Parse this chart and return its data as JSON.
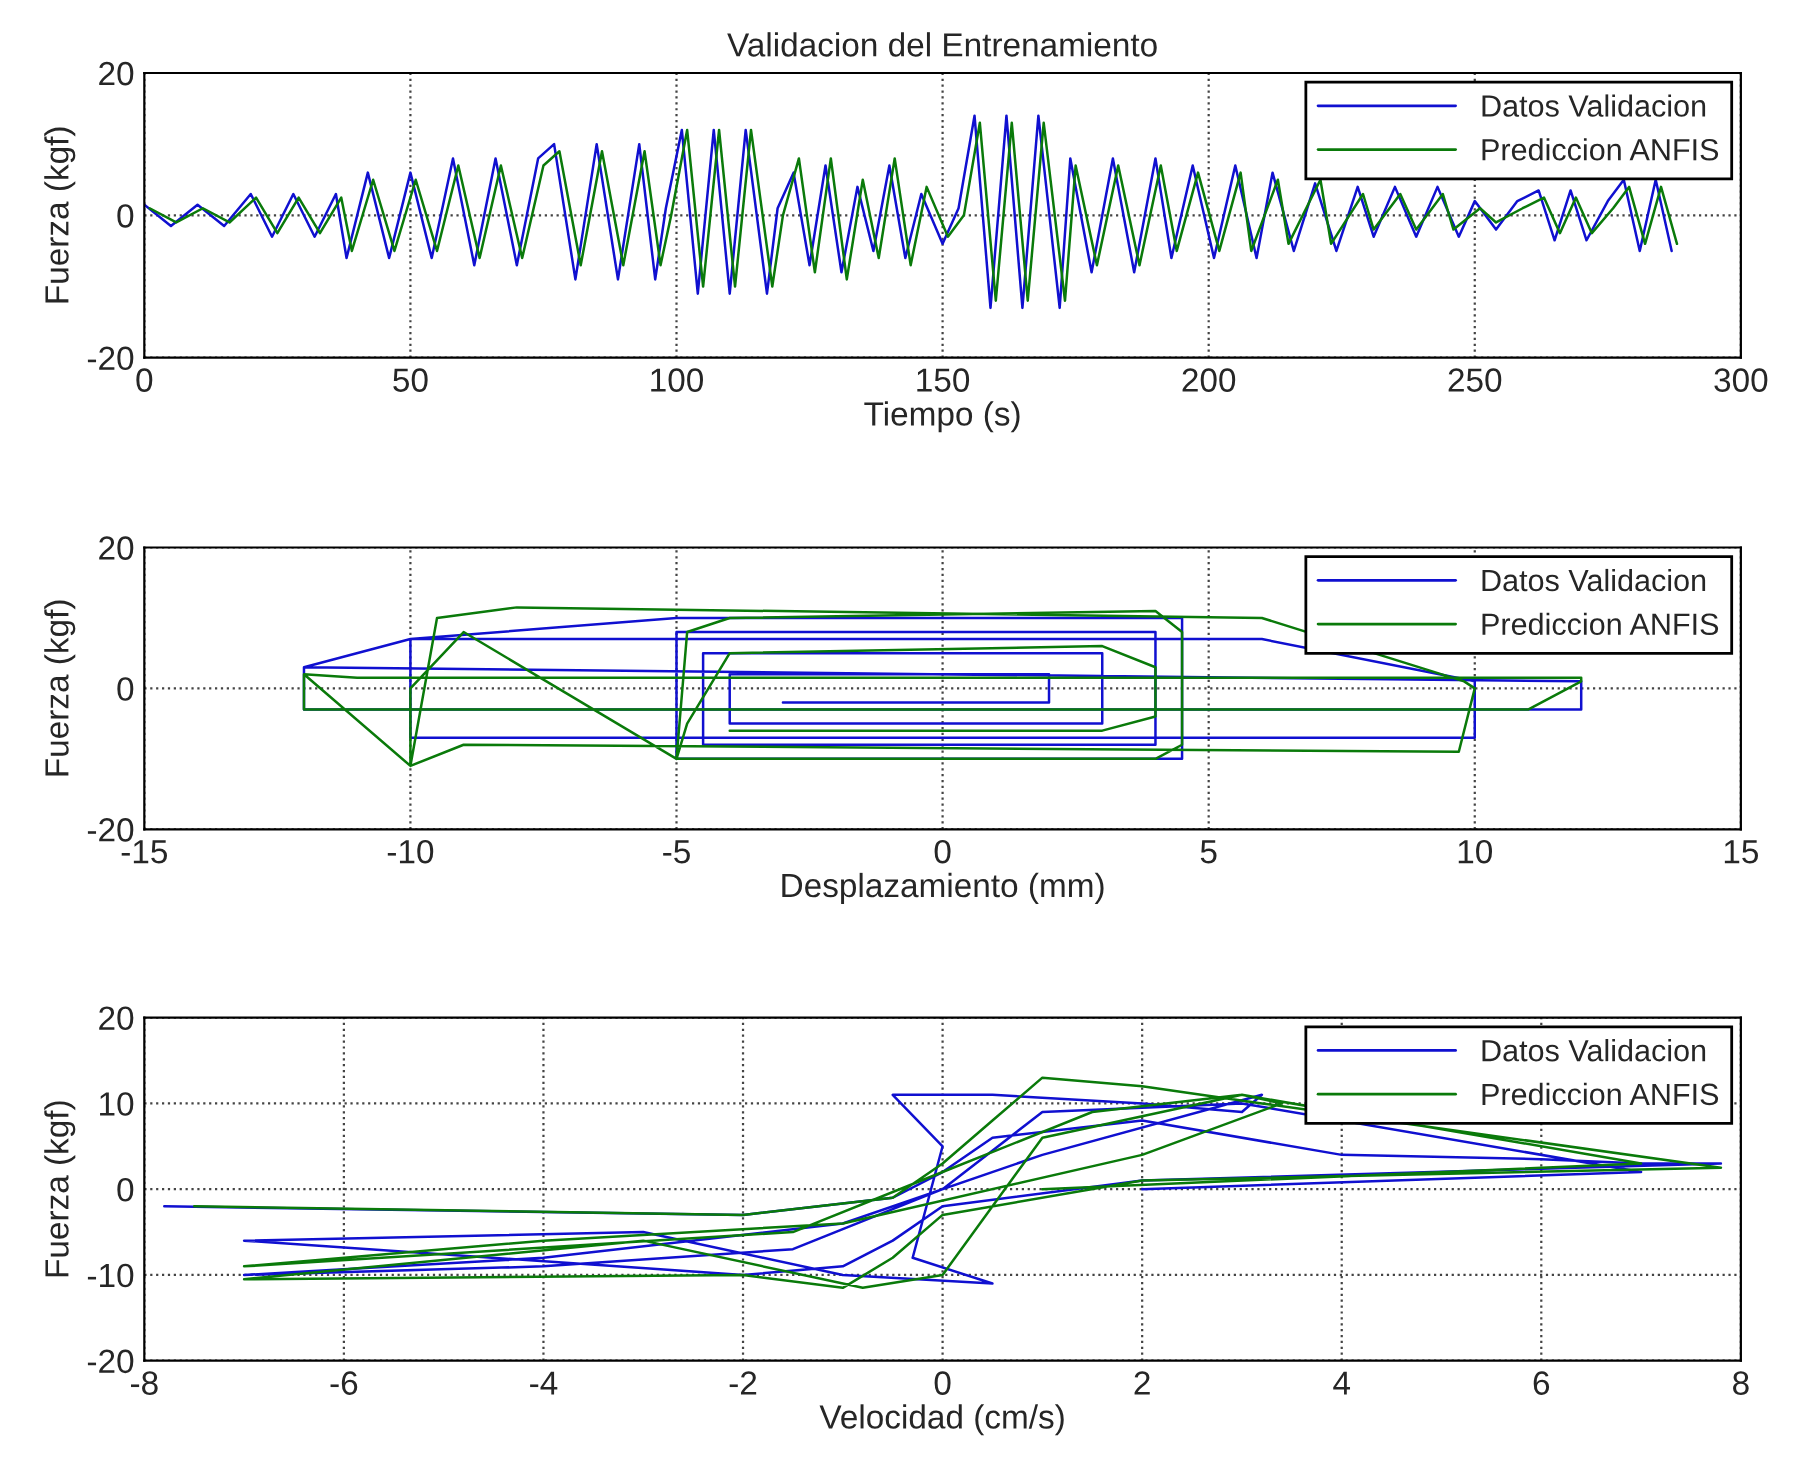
{
  "chart_data": [
    {
      "type": "line",
      "title": "Validacion del Entrenamiento",
      "xlabel": "Tiempo (s)",
      "ylabel": "Fuerza (kgf)",
      "xlim": [
        0,
        300
      ],
      "xticks": [
        0,
        50,
        100,
        150,
        200,
        250,
        300
      ],
      "ylim": [
        -20,
        20
      ],
      "yticks": [
        -20,
        0,
        20
      ],
      "grid": true,
      "legend": "top right",
      "series": [
        {
          "name": "Datos Validacion",
          "color": "#1010d0",
          "x": [
            0,
            5,
            10,
            15,
            20,
            24,
            28,
            32,
            36,
            38,
            42,
            46,
            50,
            54,
            58,
            62,
            66,
            70,
            74,
            77,
            81,
            85,
            89,
            93,
            96,
            98,
            101,
            104,
            107,
            110,
            113,
            117,
            119,
            122,
            125,
            128,
            131,
            134,
            137,
            140,
            143,
            146,
            150,
            153,
            156,
            159,
            162,
            165,
            168,
            172,
            174,
            178,
            182,
            186,
            190,
            193,
            197,
            201,
            205,
            209,
            212,
            216,
            220,
            224,
            228,
            231,
            235,
            239,
            243,
            247,
            250,
            254,
            258,
            262,
            265,
            268,
            271,
            275,
            278,
            281,
            284,
            287
          ],
          "values": [
            1.5,
            -1.5,
            1.5,
            -1.5,
            3,
            -3,
            3,
            -3,
            3,
            -6,
            6,
            -6,
            6,
            -6,
            8,
            -7,
            8,
            -7,
            8,
            10,
            -9,
            10,
            -9,
            10,
            -9,
            1,
            12,
            -11,
            12,
            -11,
            12,
            -11,
            1,
            6,
            -7,
            7,
            -8,
            4,
            -5,
            7,
            -6,
            3,
            -4,
            1,
            14,
            -13,
            14,
            -13,
            14,
            -13,
            8,
            -8,
            8,
            -8,
            8,
            -6,
            7,
            -6,
            7,
            -6,
            6,
            -5,
            4.5,
            -5,
            4,
            -3,
            4,
            -3,
            4,
            -3,
            2,
            -2,
            2,
            3.5,
            -3.5,
            3.5,
            -3.5,
            2,
            5,
            -5,
            5,
            -5
          ]
        },
        {
          "name": "Prediccion ANFIS",
          "color": "#0a7a0a",
          "x": [
            1,
            6,
            11,
            16,
            21,
            25,
            29,
            33,
            37,
            39,
            43,
            47,
            51,
            55,
            59,
            63,
            67,
            71,
            75,
            78,
            82,
            86,
            90,
            94,
            97,
            99,
            102,
            105,
            108,
            111,
            114,
            118,
            120,
            123,
            126,
            129,
            132,
            135,
            138,
            141,
            144,
            147,
            151,
            154,
            157,
            160,
            163,
            166,
            169,
            173,
            175,
            179,
            183,
            187,
            191,
            194,
            198,
            202,
            206,
            208,
            213,
            215,
            221,
            223,
            229,
            231,
            236,
            239,
            244,
            246,
            251,
            254,
            259,
            263,
            266,
            269,
            272,
            276,
            279,
            282,
            285,
            288
          ],
          "values": [
            1,
            -1,
            1,
            -1,
            2.5,
            -2.5,
            2.5,
            -2.5,
            2.5,
            -5,
            5,
            -5,
            5,
            -5,
            7,
            -6,
            7,
            -6,
            7,
            9,
            -7,
            9,
            -7,
            9,
            -7,
            0,
            12,
            -10,
            12,
            -10,
            12,
            -10,
            0,
            8,
            -8,
            8,
            -9,
            5,
            -6,
            8,
            -7,
            4,
            -3,
            0,
            13,
            -12,
            13,
            -12,
            13,
            -12,
            7,
            -7,
            7,
            -7,
            7,
            -5,
            6,
            -5,
            6,
            -5,
            5,
            -4,
            5,
            -4,
            3,
            -2,
            3,
            -2,
            3,
            -2,
            1,
            -1,
            1,
            2.5,
            -2.5,
            2.5,
            -2.5,
            1,
            4,
            -4,
            4,
            -4
          ]
        }
      ]
    },
    {
      "type": "line",
      "xlabel": "Desplazamiento (mm)",
      "ylabel": "Fuerza (kgf)",
      "xlim": [
        -15,
        15
      ],
      "xticks": [
        -15,
        -10,
        -5,
        0,
        5,
        10,
        15
      ],
      "ylim": [
        -20,
        20
      ],
      "yticks": [
        -20,
        0,
        20
      ],
      "grid": true,
      "legend": "top right",
      "series": [
        {
          "name": "Datos Validacion",
          "color": "#1010d0",
          "x": [
            -12,
            12,
            12,
            -12,
            -12,
            -10,
            6,
            10,
            10,
            -10,
            -10,
            -5,
            4.5,
            4.5,
            -5,
            -5,
            4,
            4,
            -4.5,
            -4.5,
            3,
            3,
            -4,
            -4,
            2,
            2,
            -3
          ],
          "values": [
            3,
            1,
            -3,
            -3,
            3,
            7,
            7,
            1,
            -7,
            -7,
            7,
            10,
            10,
            -10,
            -10,
            8,
            8,
            -8,
            -8,
            5,
            5,
            -5,
            -5,
            2,
            2,
            -2,
            -2
          ]
        },
        {
          "name": "Prediccion ANFIS",
          "color": "#0a7a0a",
          "x": [
            -12,
            -11,
            12,
            12,
            11,
            -12,
            -12,
            -10,
            -9.5,
            -8,
            6,
            9.8,
            10,
            9.7,
            -9,
            -10,
            -10,
            -9,
            -5,
            -4.8,
            -4,
            4,
            4.5,
            4.5,
            4,
            -5,
            -4.8,
            -4,
            3,
            4,
            4,
            3,
            -4
          ],
          "values": [
            2,
            1.5,
            1.5,
            1,
            -3,
            -3,
            2,
            -11,
            10,
            11.5,
            10,
            1,
            0,
            -9,
            -8,
            -11,
            0,
            8,
            -10,
            8,
            10,
            11,
            8,
            -8,
            -10,
            -10,
            -5,
            5,
            6,
            3,
            -4,
            -6,
            -6
          ]
        }
      ]
    },
    {
      "type": "line",
      "xlabel": "Velocidad (cm/s)",
      "ylabel": "Fuerza (kgf)",
      "xlim": [
        -8,
        8
      ],
      "xticks": [
        -8,
        -6,
        -4,
        -2,
        0,
        2,
        4,
        6,
        8
      ],
      "ylim": [
        -20,
        20
      ],
      "yticks": [
        -20,
        -10,
        0,
        10,
        20
      ],
      "grid": true,
      "legend": "top right",
      "series": [
        {
          "name": "Datos Validacion",
          "color": "#1010d0",
          "x": [
            -7.8,
            -2,
            -0.5,
            0,
            0.5,
            2,
            4,
            6,
            7,
            7.8,
            2,
            0,
            -0.5,
            -1,
            -2,
            -7,
            -3,
            -1,
            0.5,
            -0.3,
            0,
            -0.5,
            0.5,
            2,
            3,
            3.2,
            1,
            -1,
            -4,
            -7,
            -4,
            -1.5,
            0,
            1,
            3,
            7,
            2
          ],
          "values": [
            -2,
            -3,
            -1,
            2,
            6,
            8,
            4,
            3.5,
            3,
            3,
            1,
            -2,
            -6,
            -9,
            -10,
            -6,
            -5,
            -10,
            -11,
            -8,
            5,
            11,
            11,
            10,
            9,
            11,
            4,
            -4,
            -8,
            -10,
            -9,
            -7,
            0,
            9,
            10,
            2,
            0
          ]
        },
        {
          "name": "Prediccion ANFIS",
          "color": "#0a7a0a",
          "x": [
            -7.5,
            -2,
            -0.5,
            0,
            0.5,
            1,
            2,
            3.2,
            7.8,
            2,
            0,
            -0.5,
            -1,
            -2,
            -7,
            -3,
            -0.8,
            0,
            1,
            3,
            3.4,
            2,
            -1,
            -4,
            -7,
            -1.5,
            0,
            1.5,
            3,
            7,
            1
          ],
          "values": [
            -2,
            -3,
            -1,
            3,
            8,
            13,
            12,
            10,
            2.5,
            1,
            -3,
            -8,
            -11.5,
            -10,
            -10.5,
            -6,
            -11.5,
            -10,
            6,
            11,
            10,
            4,
            -4,
            -6,
            -9,
            -5,
            2,
            9,
            11,
            3,
            0
          ]
        }
      ]
    }
  ]
}
